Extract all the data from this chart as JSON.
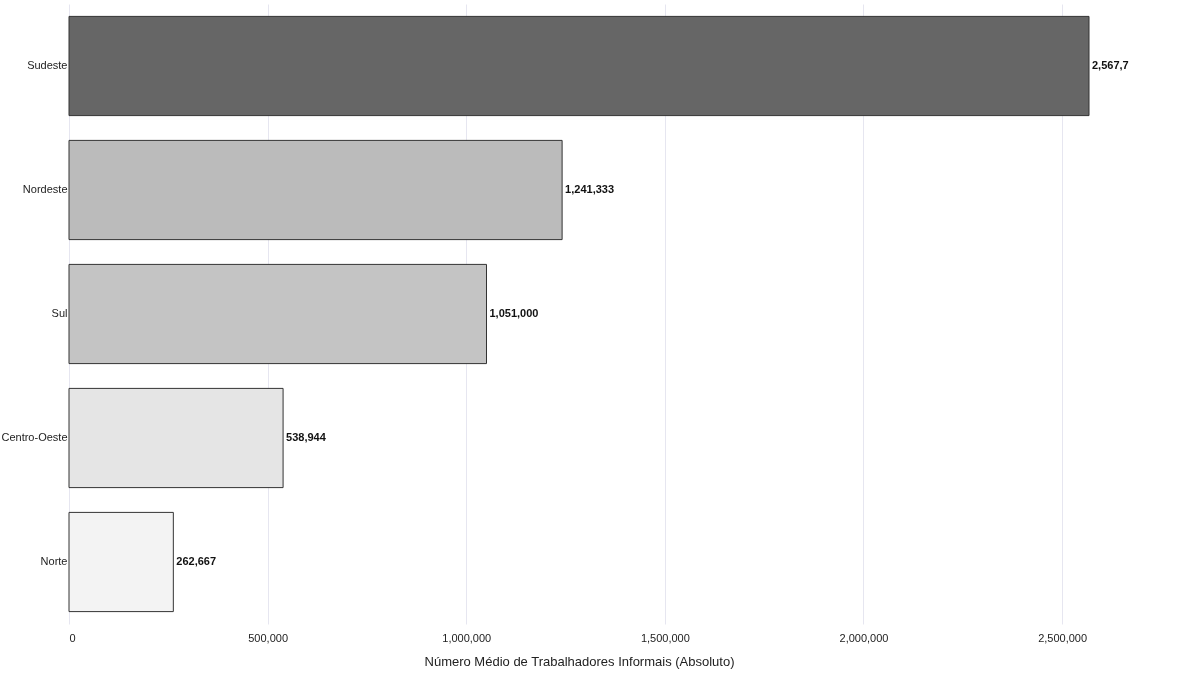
{
  "chart_data": {
    "type": "bar",
    "orientation": "horizontal",
    "xlabel": "Número Médio de Trabalhadores Informais (Absoluto)",
    "categories": [
      "Sudeste",
      "Nordeste",
      "Sul",
      "Centro-Oeste",
      "Norte"
    ],
    "values": [
      2567700,
      1241333,
      1051000,
      538944,
      262667
    ],
    "value_labels": [
      "2,567,7",
      "1,241,333",
      "1,051,000",
      "538,944",
      "262,667"
    ],
    "colors": [
      "#666666",
      "#bbbbbb",
      "#c4c4c4",
      "#e5e5e5",
      "#f3f3f3"
    ],
    "xlim": [
      0,
      2567700
    ],
    "xticks": [
      0,
      {
        "value": 500000,
        "label": "500,000"
      },
      {
        "value": 1000000,
        "label": "1,000,000"
      },
      {
        "value": 1500000,
        "label": "1,500,000"
      },
      {
        "value": 2000000,
        "label": "2,000,000"
      },
      {
        "value": 2500000,
        "label": "2,500,000"
      }
    ],
    "grid": "x"
  }
}
